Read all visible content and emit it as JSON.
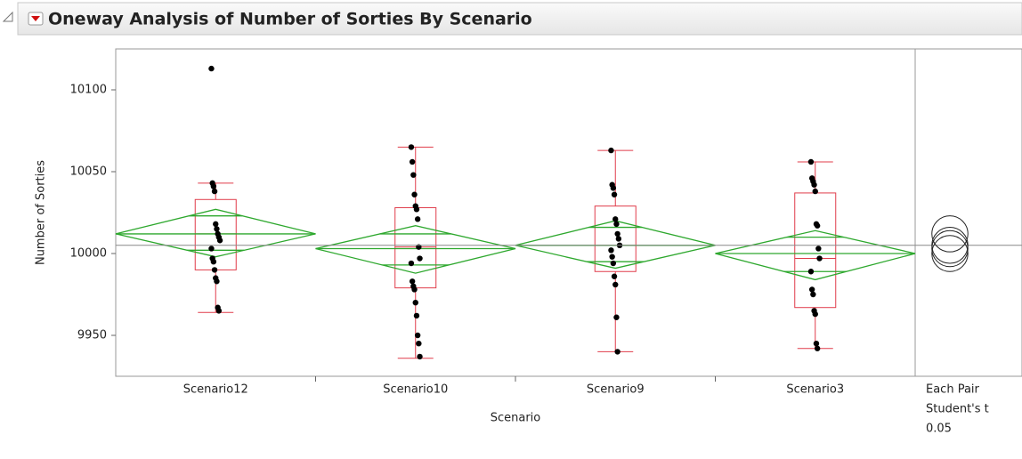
{
  "chart_data": {
    "type": "oneway",
    "title": "Oneway Analysis of Number of Sorties By Scenario",
    "y_label": "Number of Sorties",
    "x_label": "Scenario",
    "ylim": [
      9925,
      10125
    ],
    "yticks": [
      9950,
      10000,
      10050,
      10100
    ],
    "grand_mean": 10005,
    "point_color": "#000000",
    "box_color": "#e03c4a",
    "diamond_color": "#2ea82e",
    "line_color": "#888888",
    "groups": [
      {
        "name": "Scenario12",
        "points": [
          10113,
          10043,
          10041,
          10038,
          10018,
          10015,
          10012,
          10010,
          10008,
          10003,
          9997,
          9995,
          9990,
          9985,
          9983,
          9967,
          9965
        ],
        "box": {
          "min": 9964,
          "q1": 9990,
          "median": 10012,
          "q3": 10033,
          "max": 10043
        },
        "mean": 10012,
        "ci": [
          9998,
          10027
        ],
        "overlap": [
          10002,
          10023
        ]
      },
      {
        "name": "Scenario10",
        "points": [
          10065,
          10056,
          10048,
          10036,
          10029,
          10027,
          10021,
          10004,
          9997,
          9994,
          9983,
          9980,
          9978,
          9970,
          9962,
          9950,
          9945,
          9937
        ],
        "box": {
          "min": 9936,
          "q1": 9979,
          "median": 10004,
          "q3": 10028,
          "max": 10065
        },
        "mean": 10003,
        "ci": [
          9988,
          10017
        ],
        "overlap": [
          9993,
          10012
        ]
      },
      {
        "name": "Scenario9",
        "points": [
          10063,
          10042,
          10040,
          10036,
          10021,
          10018,
          10012,
          10009,
          10005,
          10002,
          9998,
          9994,
          9986,
          9981,
          9961,
          9940
        ],
        "box": {
          "min": 9940,
          "q1": 9989,
          "median": 10005,
          "q3": 10029,
          "max": 10063
        },
        "mean": 10005,
        "ci": [
          9991,
          10020
        ],
        "overlap": [
          9995,
          10016
        ]
      },
      {
        "name": "Scenario3",
        "points": [
          10056,
          10046,
          10044,
          10042,
          10038,
          10018,
          10017,
          10003,
          9997,
          9989,
          9978,
          9975,
          9965,
          9963,
          9945,
          9942
        ],
        "box": {
          "min": 9942,
          "q1": 9967,
          "median": 9997,
          "q3": 10037,
          "max": 10056
        },
        "mean": 10000,
        "ci": [
          9984,
          10014
        ],
        "overlap": [
          9989,
          10010
        ]
      }
    ],
    "comparison": {
      "labels": [
        "Each Pair",
        "Student's t",
        "0.05"
      ],
      "radius": 11
    }
  }
}
